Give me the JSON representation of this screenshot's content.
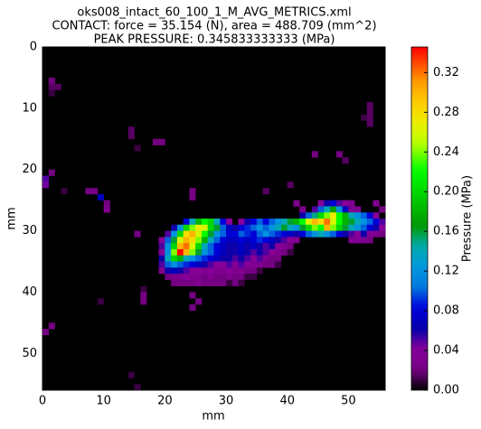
{
  "chart_data": {
    "type": "heatmap",
    "title": [
      "oks008_intact_60_100_1_M_AVG_METRICS.xml",
      "CONTACT: force = 35.154 (N), area = 488.709 (mm^2)",
      "PEAK PRESSURE: 0.345833333333 (MPa)"
    ],
    "xlabel": "mm",
    "ylabel": "mm",
    "colorbar_label": "Pressure (MPa)",
    "colormap": "nipy_spectral",
    "xlim": [
      0,
      56
    ],
    "ylim": [
      56,
      0
    ],
    "xticks": [
      0,
      10,
      20,
      30,
      40,
      50
    ],
    "yticks": [
      0,
      10,
      20,
      30,
      40,
      50
    ],
    "clim": [
      0,
      0.345833333333
    ],
    "cticks": [
      {
        "value": 0,
        "label": "0.00"
      },
      {
        "value": 0.04,
        "label": "0.04"
      },
      {
        "value": 0.08,
        "label": "0.08"
      },
      {
        "value": 0.12,
        "label": "0.12"
      },
      {
        "value": 0.16,
        "label": "0.16"
      },
      {
        "value": 0.2,
        "label": "0.20"
      },
      {
        "value": 0.24,
        "label": "0.24"
      },
      {
        "value": 0.28,
        "label": "0.28"
      },
      {
        "value": 0.32,
        "label": "0.32"
      }
    ],
    "segments": [
      {
        "y": 5,
        "x0": 1,
        "values": [
          0.02
        ]
      },
      {
        "y": 6,
        "x0": 1,
        "values": [
          0.015,
          0.015
        ]
      },
      {
        "y": 7,
        "x0": 1,
        "values": [
          0.01
        ]
      },
      {
        "y": 9,
        "x0": 53,
        "values": [
          0.015
        ]
      },
      {
        "y": 10,
        "x0": 53,
        "values": [
          0.015
        ]
      },
      {
        "y": 11,
        "x0": 52,
        "values": [
          0.01,
          0.015
        ]
      },
      {
        "y": 12,
        "x0": 53,
        "values": [
          0.015
        ]
      },
      {
        "y": 13,
        "x0": 14,
        "values": [
          0.015
        ]
      },
      {
        "y": 14,
        "x0": 14,
        "values": [
          0.015
        ]
      },
      {
        "y": 15,
        "x0": 18,
        "values": [
          0.02,
          0.02
        ]
      },
      {
        "y": 16,
        "x0": 15,
        "values": [
          0.01
        ]
      },
      {
        "y": 17,
        "x0": 44,
        "values": [
          0.02
        ]
      },
      {
        "y": 17,
        "x0": 48,
        "values": [
          0.02
        ]
      },
      {
        "y": 18,
        "x0": 49,
        "values": [
          0.015
        ]
      },
      {
        "y": 20,
        "x0": 1,
        "values": [
          0.02
        ]
      },
      {
        "y": 21,
        "x0": 0,
        "values": [
          0.05
        ]
      },
      {
        "y": 22,
        "x0": 0,
        "values": [
          0.045
        ]
      },
      {
        "y": 22,
        "x0": 40,
        "values": [
          0.015
        ]
      },
      {
        "y": 23,
        "x0": 3,
        "values": [
          0.01
        ]
      },
      {
        "y": 23,
        "x0": 7,
        "values": [
          0.02,
          0.02
        ]
      },
      {
        "y": 23,
        "x0": 24,
        "values": [
          0.02
        ]
      },
      {
        "y": 23,
        "x0": 36,
        "values": [
          0.015
        ]
      },
      {
        "y": 24,
        "x0": 9,
        "values": [
          0.07
        ]
      },
      {
        "y": 24,
        "x0": 24,
        "values": [
          0.02
        ]
      },
      {
        "y": 25,
        "x0": 10,
        "values": [
          0.02
        ]
      },
      {
        "y": 25,
        "x0": 41,
        "values": [
          0.03
        ]
      },
      {
        "y": 25,
        "x0": 45,
        "values": [
          0.04,
          0.06,
          0.08,
          0.05,
          0.04,
          0.03
        ]
      },
      {
        "y": 25,
        "x0": 54,
        "values": [
          0.03
        ]
      },
      {
        "y": 26,
        "x0": 10,
        "values": [
          0.03
        ]
      },
      {
        "y": 26,
        "x0": 42,
        "values": [
          0.03
        ]
      },
      {
        "y": 26,
        "x0": 44,
        "values": [
          0.05,
          0.1,
          0.14,
          0.17,
          0.12,
          0.07,
          0.03,
          0.03
        ]
      },
      {
        "y": 26,
        "x0": 55,
        "values": [
          0.02
        ]
      },
      {
        "y": 27,
        "x0": 42,
        "values": [
          0.06,
          0.1,
          0.15,
          0.2,
          0.24,
          0.27,
          0.22,
          0.18,
          0.14,
          0.12,
          0.1,
          0.08,
          0.04
        ]
      },
      {
        "y": 28,
        "x0": 23,
        "values": [
          0.08,
          0.14,
          0.18,
          0.22,
          0.2,
          0.14,
          0.08,
          0.04
        ]
      },
      {
        "y": 28,
        "x0": 32,
        "values": [
          0.04,
          0.06,
          0.08,
          0.1,
          0.08,
          0.1,
          0.12,
          0.14,
          0.16,
          0.18,
          0.22,
          0.26,
          0.3,
          0.28,
          0.32,
          0.26,
          0.22,
          0.18,
          0.16,
          0.14,
          0.12,
          0.1,
          0.08,
          0.05
        ]
      },
      {
        "y": 29,
        "x0": 21,
        "values": [
          0.06,
          0.12,
          0.2,
          0.24,
          0.27,
          0.26,
          0.2,
          0.16,
          0.1,
          0.07,
          0.06,
          0.08,
          0.09,
          0.1,
          0.12,
          0.1,
          0.12,
          0.14,
          0.16,
          0.14,
          0.12,
          0.16,
          0.2,
          0.24,
          0.22,
          0.3,
          0.24,
          0.2,
          0.16,
          0.14,
          0.12,
          0.1,
          0.08,
          0.06,
          0.04
        ]
      },
      {
        "y": 30,
        "x0": 15,
        "values": [
          0.02
        ]
      },
      {
        "y": 30,
        "x0": 20,
        "values": [
          0.05,
          0.12,
          0.2,
          0.28,
          0.3,
          0.26,
          0.22,
          0.16,
          0.12,
          0.1,
          0.08,
          0.08,
          0.1,
          0.09,
          0.08,
          0.1,
          0.12,
          0.1,
          0.09,
          0.08,
          0.07,
          0.06,
          0.08,
          0.1,
          0.12,
          0.14,
          0.12,
          0.1,
          0.08,
          0.06,
          0.05,
          0.04,
          0.06,
          0.04,
          0.03,
          0.02
        ]
      },
      {
        "y": 31,
        "x0": 19,
        "values": [
          0.04,
          0.1,
          0.16,
          0.26,
          0.3,
          0.28,
          0.24,
          0.18,
          0.14,
          0.1,
          0.08,
          0.07,
          0.07,
          0.08,
          0.07,
          0.08,
          0.09,
          0.08,
          0.07,
          0.06,
          0.05,
          0.04,
          0.03
        ]
      },
      {
        "y": 31,
        "x0": 50,
        "values": [
          0.03,
          0.04,
          0.03,
          0.02
        ]
      },
      {
        "y": 32,
        "x0": 19,
        "values": [
          0.05,
          0.12,
          0.2,
          0.3,
          0.32,
          0.26,
          0.2,
          0.14,
          0.1,
          0.08,
          0.07,
          0.06,
          0.06,
          0.07,
          0.06,
          0.07,
          0.06,
          0.05,
          0.06,
          0.04,
          0.03,
          0.02
        ]
      },
      {
        "y": 33,
        "x0": 19,
        "values": [
          0.04,
          0.12,
          0.24,
          0.345833333333,
          0.3,
          0.24,
          0.16,
          0.12,
          0.1,
          0.08,
          0.07,
          0.06,
          0.06,
          0.07,
          0.06,
          0.05,
          0.06,
          0.05,
          0.04,
          0.03,
          0.02,
          0.01
        ]
      },
      {
        "y": 34,
        "x0": 19,
        "values": [
          0.06,
          0.14,
          0.2,
          0.18,
          0.14,
          0.12,
          0.1,
          0.09,
          0.08,
          0.07,
          0.06,
          0.06,
          0.05,
          0.06,
          0.05,
          0.04,
          0.05,
          0.03,
          0.02,
          0.02
        ]
      },
      {
        "y": 35,
        "x0": 19,
        "values": [
          0.05,
          0.1,
          0.12,
          0.1,
          0.09,
          0.08,
          0.07,
          0.06,
          0.05,
          0.04,
          0.04,
          0.05,
          0.04,
          0.05,
          0.04,
          0.03,
          0.03,
          0.02,
          0.02,
          0.01
        ]
      },
      {
        "y": 36,
        "x0": 19,
        "values": [
          0.03,
          0.06,
          0.07,
          0.06,
          0.05,
          0.04,
          0.04,
          0.03,
          0.04,
          0.03,
          0.03,
          0.04,
          0.03,
          0.03,
          0.02,
          0.02,
          0.01
        ]
      },
      {
        "y": 37,
        "x0": 20,
        "values": [
          0.02,
          0.03,
          0.03,
          0.04,
          0.03,
          0.03,
          0.02,
          0.03,
          0.02,
          0.02,
          0.03,
          0.02,
          0.02,
          0.01,
          0.01
        ]
      },
      {
        "y": 38,
        "x0": 21,
        "values": [
          0.02,
          0.02,
          0.02,
          0.02,
          0.03,
          0.02,
          0.02,
          0.02,
          0.02,
          0.01,
          0.02,
          0.01
        ]
      },
      {
        "y": 39,
        "x0": 16,
        "values": [
          0.01
        ]
      },
      {
        "y": 40,
        "x0": 24,
        "values": [
          0.02
        ]
      },
      {
        "y": 40,
        "x0": 16,
        "values": [
          0.02
        ]
      },
      {
        "y": 41,
        "x0": 9,
        "values": [
          0.01
        ]
      },
      {
        "y": 41,
        "x0": 16,
        "values": [
          0.02
        ]
      },
      {
        "y": 41,
        "x0": 25,
        "values": [
          0.02
        ]
      },
      {
        "y": 42,
        "x0": 24,
        "values": [
          0.02
        ]
      },
      {
        "y": 45,
        "x0": 1,
        "values": [
          0.02
        ]
      },
      {
        "y": 46,
        "x0": 0,
        "values": [
          0.02
        ]
      },
      {
        "y": 53,
        "x0": 14,
        "values": [
          0.01
        ]
      },
      {
        "y": 55,
        "x0": 15,
        "values": [
          0.01
        ]
      }
    ]
  }
}
